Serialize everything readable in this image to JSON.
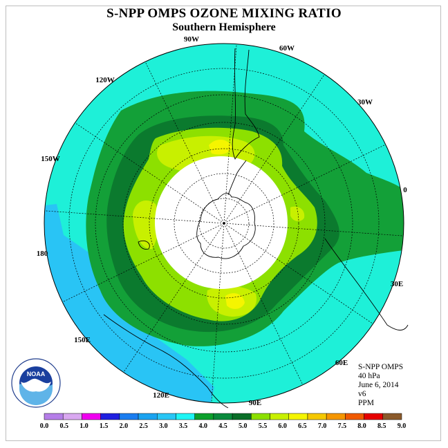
{
  "title": "S-NPP OMPS OZONE MIXING RATIO",
  "subtitle": "Southern Hemisphere",
  "info": {
    "instrument": "S-NPP OMPS",
    "level": "40 hPa",
    "date": "June 6, 2014",
    "version": "v6",
    "units": "PPM"
  },
  "logo": {
    "text": "NOAA",
    "ring_text": "NATIONAL OCEANIC AND ATMOSPHERIC ADMINISTRATION · U.S. DEPARTMENT OF COMMERCE"
  },
  "longitude_labels": [
    "0",
    "30E",
    "60E",
    "90E",
    "120E",
    "150E",
    "180",
    "150W",
    "120W",
    "90W",
    "60W",
    "30W"
  ],
  "colorbar": {
    "ticks": [
      "0.0",
      "0.5",
      "1.0",
      "1.5",
      "2.0",
      "2.5",
      "3.0",
      "3.5",
      "4.0",
      "4.5",
      "5.0",
      "5.5",
      "6.0",
      "6.5",
      "7.0",
      "7.5",
      "8.0",
      "8.5",
      "9.0"
    ],
    "colors": [
      "#b57ee8",
      "#d9a8f0",
      "#f000f0",
      "#2020e0",
      "#1a7df0",
      "#1aa3f0",
      "#29c6f5",
      "#1ef5f5",
      "#0ca02c",
      "#0a8a3c",
      "#0a6e28",
      "#8ce000",
      "#c8f000",
      "#f5f500",
      "#f5c800",
      "#f59600",
      "#f05a00",
      "#e60000",
      "#8b5a2b"
    ]
  },
  "map_colors": {
    "background_cyan": "#1ef0d8",
    "blue_band": "#29c4f5",
    "green_outer": "#13a038",
    "green_mid": "#0b7a2e",
    "lime": "#8de000",
    "yellow_green": "#c8f000",
    "yellow": "#f5f500",
    "polar_hole": "#ffffff"
  }
}
